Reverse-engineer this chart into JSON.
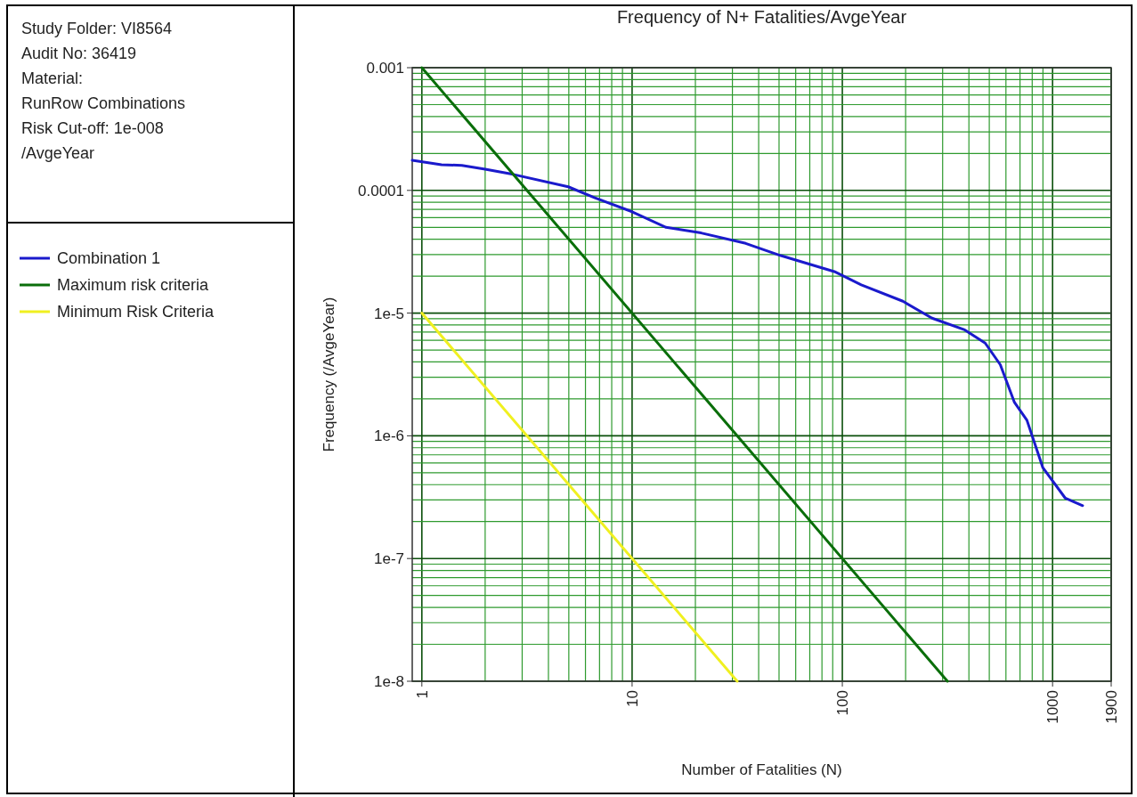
{
  "chart_data": {
    "type": "line",
    "title": "Frequency of N+ Fatalities/AvgeYear",
    "xlabel": "Number of Fatalities (N)",
    "ylabel": "Frequency (/AvgeYear)",
    "annotations": [
      "Study Folder: VI8564",
      "Audit No: 36419",
      "Material:",
      "RunRow Combinations",
      "Risk Cut-off: 1e-008",
      "/AvgeYear"
    ],
    "log": "xy",
    "grid": true,
    "legend": "left",
    "xlim": [
      0.9,
      1900
    ],
    "xticks": [
      1,
      {
        "value": 2,
        "label": null
      },
      {
        "value": 3,
        "label": null
      },
      {
        "value": 4,
        "label": null
      },
      {
        "value": 5,
        "label": null
      },
      {
        "value": 6,
        "label": null
      },
      {
        "value": 7,
        "label": null
      },
      {
        "value": 8,
        "label": null
      },
      {
        "value": 9,
        "label": null
      },
      10,
      {
        "value": 20,
        "label": null
      },
      {
        "value": 30,
        "label": null
      },
      {
        "value": 40,
        "label": null
      },
      {
        "value": 50,
        "label": null
      },
      {
        "value": 60,
        "label": null
      },
      {
        "value": 70,
        "label": null
      },
      {
        "value": 80,
        "label": null
      },
      {
        "value": 90,
        "label": null
      },
      100,
      {
        "value": 200,
        "label": null
      },
      {
        "value": 300,
        "label": null
      },
      {
        "value": 400,
        "label": null
      },
      {
        "value": 500,
        "label": null
      },
      {
        "value": 600,
        "label": null
      },
      {
        "value": 700,
        "label": null
      },
      {
        "value": 800,
        "label": null
      },
      {
        "value": 900,
        "label": null
      },
      1000,
      1900
    ],
    "ylim": [
      1e-08,
      0.001
    ],
    "yticks": [
      {
        "value": 0.001,
        "label": "0.001"
      },
      {
        "value": 0.0009,
        "label": null
      },
      {
        "value": 0.0008,
        "label": null
      },
      {
        "value": 0.0007,
        "label": null
      },
      {
        "value": 0.0006,
        "label": null
      },
      {
        "value": 0.0005,
        "label": null
      },
      {
        "value": 0.0004,
        "label": null
      },
      {
        "value": 0.0003,
        "label": null
      },
      {
        "value": 0.0002,
        "label": null
      },
      {
        "value": 0.0001,
        "label": "0.0001"
      },
      {
        "value": 9e-05,
        "label": null
      },
      {
        "value": 8e-05,
        "label": null
      },
      {
        "value": 7e-05,
        "label": null
      },
      {
        "value": 6e-05,
        "label": null
      },
      {
        "value": 5e-05,
        "label": null
      },
      {
        "value": 4e-05,
        "label": null
      },
      {
        "value": 3e-05,
        "label": null
      },
      {
        "value": 2e-05,
        "label": null
      },
      {
        "value": 1e-05,
        "label": "1e-5"
      },
      {
        "value": 9e-06,
        "label": null
      },
      {
        "value": 8e-06,
        "label": null
      },
      {
        "value": 7e-06,
        "label": null
      },
      {
        "value": 6e-06,
        "label": null
      },
      {
        "value": 5e-06,
        "label": null
      },
      {
        "value": 4e-06,
        "label": null
      },
      {
        "value": 3e-06,
        "label": null
      },
      {
        "value": 2e-06,
        "label": null
      },
      {
        "value": 1e-06,
        "label": "1e-6"
      },
      {
        "value": 9e-07,
        "label": null
      },
      {
        "value": 8e-07,
        "label": null
      },
      {
        "value": 7e-07,
        "label": null
      },
      {
        "value": 6e-07,
        "label": null
      },
      {
        "value": 5e-07,
        "label": null
      },
      {
        "value": 4e-07,
        "label": null
      },
      {
        "value": 3e-07,
        "label": null
      },
      {
        "value": 2e-07,
        "label": null
      },
      {
        "value": 1e-07,
        "label": "1e-7"
      },
      {
        "value": 9e-08,
        "label": null
      },
      {
        "value": 8e-08,
        "label": null
      },
      {
        "value": 7e-08,
        "label": null
      },
      {
        "value": 6e-08,
        "label": null
      },
      {
        "value": 5e-08,
        "label": null
      },
      {
        "value": 4e-08,
        "label": null
      },
      {
        "value": 3e-08,
        "label": null
      },
      {
        "value": 2e-08,
        "label": null
      },
      {
        "value": 1e-08,
        "label": "1e-8"
      }
    ],
    "series": [
      {
        "name": "Combination 1",
        "color": "#1a1acc",
        "x": [
          0.9,
          1.24,
          1.55,
          2.0,
          2.72,
          4.97,
          6.65,
          10,
          14.5,
          21.3,
          34.7,
          51,
          91.6,
          123,
          194,
          267,
          382,
          478,
          564,
          659,
          755,
          899,
          1150,
          1390
        ],
        "values": [
          0.000176,
          0.000162,
          0.00016,
          0.000149,
          0.000135,
          0.000107,
          8.7e-05,
          6.7e-05,
          5e-05,
          4.5e-05,
          3.7e-05,
          2.94e-05,
          2.18e-05,
          1.7e-05,
          1.25e-05,
          9.1e-06,
          7.3e-06,
          5.7e-06,
          3.8e-06,
          1.87e-06,
          1.34e-06,
          5.5e-07,
          3.1e-07,
          2.7e-07
        ]
      },
      {
        "name": "Maximum risk criteria",
        "color": "#0a6e0a",
        "x": [
          1,
          316.2
        ],
        "values": [
          0.001,
          1e-08
        ]
      },
      {
        "name": "Minimum Risk Criteria",
        "color": "#f0f020",
        "x": [
          1,
          31.62
        ],
        "values": [
          1e-05,
          1e-08
        ]
      }
    ]
  }
}
